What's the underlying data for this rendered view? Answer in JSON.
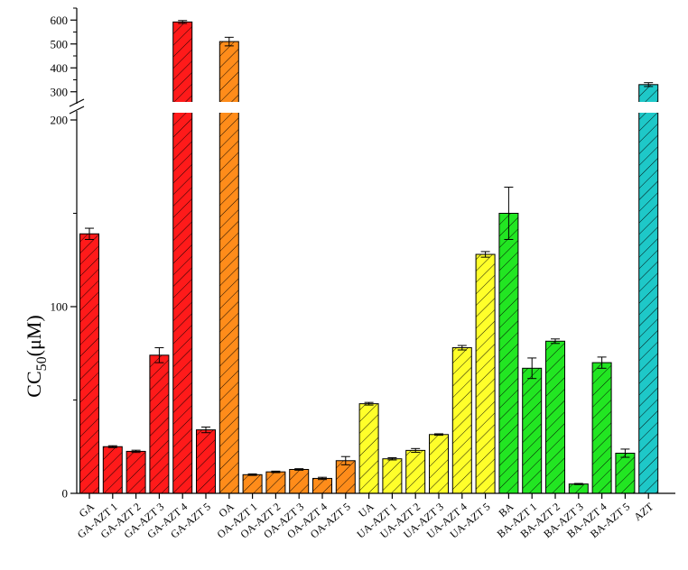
{
  "chart_data": {
    "type": "bar",
    "title": "",
    "xlabel": "",
    "ylabel": "CC",
    "ylabel_subscript": "50",
    "ylabel_unit": "(μM)",
    "axis_break": true,
    "lower_segment": {
      "range": [
        0,
        200
      ],
      "ticks": [
        "0",
        "100",
        "200"
      ],
      "tick_values": [
        0,
        100,
        200
      ]
    },
    "upper_segment": {
      "range": [
        250,
        650
      ],
      "ticks": [
        "300",
        "400",
        "500",
        "600"
      ],
      "tick_values": [
        300,
        400,
        500,
        600
      ]
    },
    "categories": [
      "GA",
      "GA-AZT 1",
      "GA-AZT 2",
      "GA-AZT 3",
      "GA-AZT 4",
      "GA-AZT 5",
      "OA",
      "OA-AZT 1",
      "OA-AZT 2",
      "OA-AZT 3",
      "OA-AZT 4",
      "OA-AZT 5",
      "UA",
      "UA-AZT 1",
      "UA-AZT 2",
      "UA-AZT 3",
      "UA-AZT 4",
      "UA-AZT 5",
      "BA",
      "BA-AZT 1",
      "BA-AZT 2",
      "BA-AZT 3",
      "BA-AZT 4",
      "BA-AZT 5",
      "AZT"
    ],
    "values": [
      139,
      25,
      22.5,
      74,
      592,
      34,
      510,
      10,
      11.5,
      12.8,
      8,
      17.5,
      48,
      18.5,
      23,
      31.5,
      78,
      128,
      150,
      67,
      81.5,
      5,
      70,
      21.5,
      330
    ],
    "errors": [
      3,
      0.5,
      0.6,
      4,
      6,
      1.5,
      18,
      0.4,
      0.4,
      0.4,
      0.6,
      2.2,
      0.7,
      0.6,
      1,
      0.4,
      1.2,
      1.5,
      14,
      5.5,
      1.2,
      0.3,
      3,
      2.2,
      8
    ],
    "colors": [
      "#ff1a1a",
      "#ff1a1a",
      "#ff1a1a",
      "#ff1a1a",
      "#ff1a1a",
      "#ff1a1a",
      "#ff8c1a",
      "#ff8c1a",
      "#ff8c1a",
      "#ff8c1a",
      "#ff8c1a",
      "#ff8c1a",
      "#ffff2a",
      "#ffff2a",
      "#ffff2a",
      "#ffff2a",
      "#ffff2a",
      "#ffff2a",
      "#22e622",
      "#22e622",
      "#22e622",
      "#22e622",
      "#22e622",
      "#22e622",
      "#1ec8c8"
    ],
    "hatch": "diagonal",
    "grid": false,
    "legend": "none"
  }
}
